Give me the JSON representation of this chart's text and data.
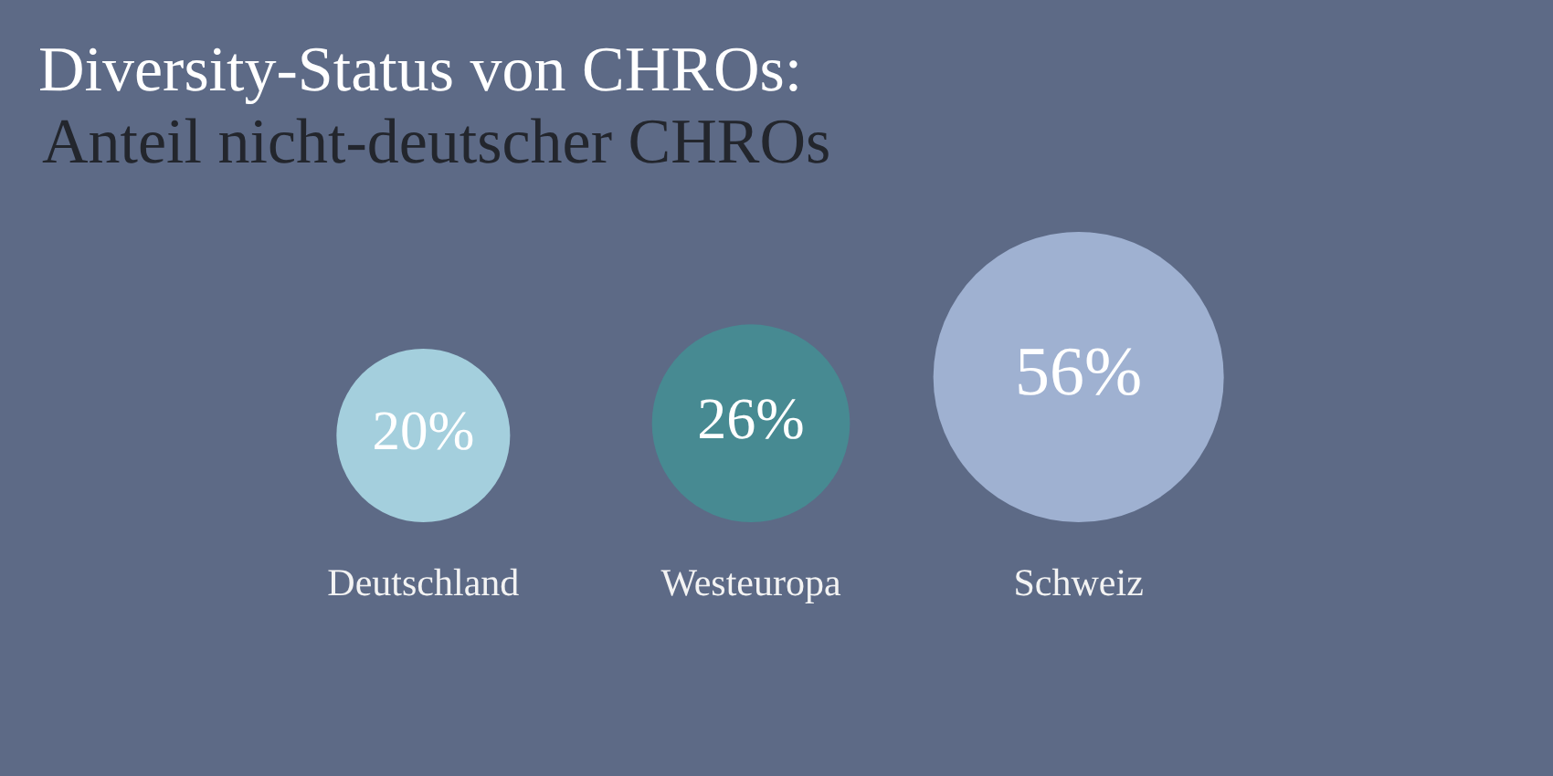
{
  "chart_data": {
    "type": "other",
    "title": "Diversity-Status von CHROs:",
    "subtitle": "Anteil nicht-deutscher CHROs",
    "categories": [
      "Deutschland",
      "Westeuropa",
      "Schweiz"
    ],
    "values": [
      20,
      26,
      56
    ],
    "value_labels": [
      "20%",
      "26%",
      "56%"
    ],
    "colors": [
      "#a4cfdd",
      "#478a92",
      "#9fb1d1"
    ]
  }
}
